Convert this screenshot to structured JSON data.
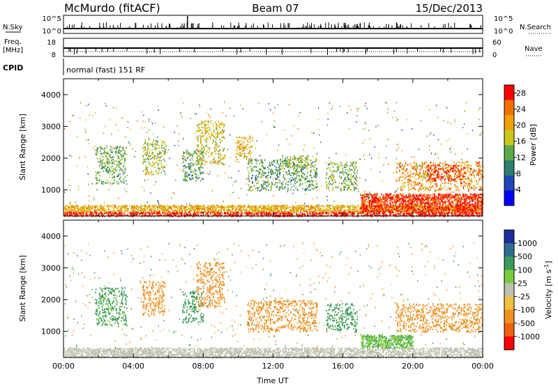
{
  "header": {
    "station": "McMurdo (fitACF)",
    "beam": "Beam 07",
    "date": "15/Dec/2013"
  },
  "strip_labels": {
    "nsky": "N.Sky",
    "nsky_top": "10^5",
    "nsky_bottom": "10^0",
    "nsearch": "N.Search",
    "nsearch_top": "10^5",
    "nsearch_bottom": "10^0",
    "freq_line1": "Freq.",
    "freq_line2": "[MHz]",
    "freq_top": "18",
    "freq_bottom": "8",
    "nave": "Nave",
    "nave_top": "60",
    "nave_bottom": "0",
    "cpid": "CPID",
    "cpid_value": "normal (fast) 151 RF"
  },
  "chart_data": [
    {
      "type": "heatmap",
      "quantity": "Power",
      "ylabel": "Slant Range [km]",
      "yticks": [
        "1000",
        "2000",
        "3000",
        "4000"
      ],
      "ylim": [
        180,
        4500
      ],
      "xlim": [
        "00:00",
        "24:00"
      ],
      "colorbar": {
        "label": "Power [dB]",
        "ticks": [
          "4",
          "8",
          "12",
          "16",
          "20",
          "24",
          "28"
        ],
        "range": [
          0,
          30
        ],
        "colors": [
          "#0000ff",
          "#1f46b4",
          "#2e7d6e",
          "#5aa84a",
          "#c8c820",
          "#f0a000",
          "#f07000",
          "#ff0000"
        ]
      },
      "regions": [
        {
          "t": [
            0.0,
            24.0
          ],
          "r": [
            190,
            330
          ],
          "value": 29
        },
        {
          "t": [
            0.0,
            24.0
          ],
          "r": [
            330,
            540
          ],
          "value": 20
        },
        {
          "t": [
            17.0,
            24.0
          ],
          "r": [
            330,
            900
          ],
          "value": 27
        },
        {
          "t": [
            1.8,
            3.6
          ],
          "r": [
            1200,
            2400
          ],
          "value": 13
        },
        {
          "t": [
            4.5,
            5.8
          ],
          "r": [
            1500,
            2600
          ],
          "value": 16
        },
        {
          "t": [
            6.8,
            8.0
          ],
          "r": [
            1300,
            2300
          ],
          "value": 12
        },
        {
          "t": [
            7.6,
            9.2
          ],
          "r": [
            1800,
            3200
          ],
          "value": 18
        },
        {
          "t": [
            9.8,
            10.8
          ],
          "r": [
            1900,
            2700
          ],
          "value": 20
        },
        {
          "t": [
            10.5,
            14.5
          ],
          "r": [
            1000,
            2000
          ],
          "value": 12
        },
        {
          "t": [
            12.5,
            14.0
          ],
          "r": [
            1700,
            2100
          ],
          "value": 15
        },
        {
          "t": [
            15.0,
            16.8
          ],
          "r": [
            1000,
            1900
          ],
          "value": 14
        },
        {
          "t": [
            19.0,
            24.0
          ],
          "r": [
            1000,
            1900
          ],
          "value": 22
        },
        {
          "t": [
            20.8,
            23.0
          ],
          "r": [
            1300,
            1800
          ],
          "value": 28
        }
      ]
    },
    {
      "type": "heatmap",
      "quantity": "Velocity",
      "ylabel": "Slant Range [km]",
      "yticks": [
        "1000",
        "2000",
        "3000",
        "4000"
      ],
      "ylim": [
        180,
        4500
      ],
      "xlim": [
        "00:00",
        "24:00"
      ],
      "xticks": [
        "00:00",
        "04:00",
        "08:00",
        "12:00",
        "16:00",
        "20:00",
        "00:00"
      ],
      "xlabel": "Time UT",
      "colorbar": {
        "label": "Velocity [m s^-1]",
        "ticks": [
          "1000",
          "500",
          "100",
          "25",
          "-25",
          "-100",
          "-500",
          "-1000"
        ],
        "colors": [
          "#1c2e9c",
          "#2e6e8e",
          "#3a9a5a",
          "#7acc3a",
          "#c0c0b0",
          "#f0c040",
          "#f09020",
          "#f06010",
          "#ff0000"
        ]
      },
      "regions": [
        {
          "t": [
            0.0,
            24.0
          ],
          "r": [
            190,
            500
          ],
          "value": 0
        },
        {
          "t": [
            1.8,
            3.6
          ],
          "r": [
            1200,
            2400
          ],
          "value": 150
        },
        {
          "t": [
            4.5,
            5.8
          ],
          "r": [
            1500,
            2600
          ],
          "value": -200
        },
        {
          "t": [
            6.8,
            8.0
          ],
          "r": [
            1300,
            2300
          ],
          "value": 300
        },
        {
          "t": [
            7.6,
            9.2
          ],
          "r": [
            1800,
            3200
          ],
          "value": -300
        },
        {
          "t": [
            10.5,
            14.5
          ],
          "r": [
            1000,
            2000
          ],
          "value": -250
        },
        {
          "t": [
            15.0,
            16.8
          ],
          "r": [
            1000,
            1900
          ],
          "value": 200
        },
        {
          "t": [
            17.0,
            20.0
          ],
          "r": [
            500,
            900
          ],
          "value": 80
        },
        {
          "t": [
            19.0,
            24.0
          ],
          "r": [
            1000,
            1900
          ],
          "value": -300
        }
      ]
    }
  ]
}
